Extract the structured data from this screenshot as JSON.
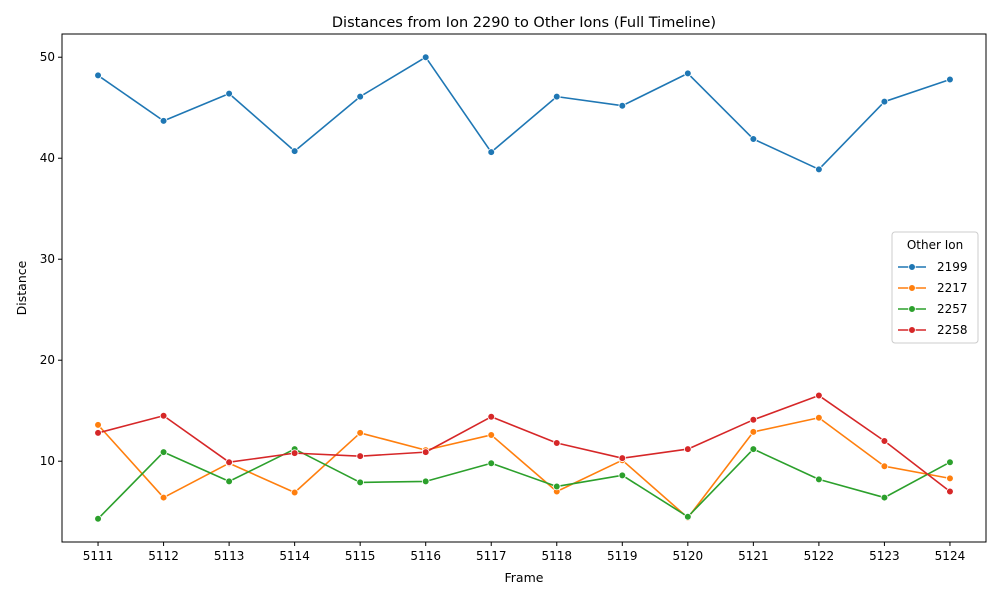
{
  "chart_data": {
    "type": "line",
    "title": "Distances from Ion 2290 to Other Ions (Full Timeline)",
    "xlabel": "Frame",
    "ylabel": "Distance",
    "x": [
      "5111",
      "5112",
      "5113",
      "5114",
      "5115",
      "5116",
      "5117",
      "5118",
      "5119",
      "5120",
      "5121",
      "5122",
      "5123",
      "5124"
    ],
    "ylim": [
      2.0,
      52.3
    ],
    "yticks": [
      10,
      20,
      30,
      40,
      50
    ],
    "grid": false,
    "legend": {
      "title": "Other Ion",
      "placement": "center-right"
    },
    "series": [
      {
        "name": "2199",
        "color": "#1f77b4",
        "values": [
          48.2,
          43.7,
          46.4,
          40.7,
          46.1,
          50.0,
          40.6,
          46.1,
          45.2,
          48.4,
          41.9,
          38.9,
          45.6,
          47.8
        ]
      },
      {
        "name": "2217",
        "color": "#ff7f0e",
        "values": [
          13.6,
          6.4,
          9.8,
          6.9,
          12.8,
          11.1,
          12.6,
          7.0,
          10.1,
          4.4,
          12.9,
          14.3,
          9.5,
          8.3
        ]
      },
      {
        "name": "2257",
        "color": "#2ca02c",
        "values": [
          4.3,
          10.9,
          8.0,
          11.2,
          7.9,
          8.0,
          9.8,
          7.5,
          8.6,
          4.5,
          11.2,
          8.2,
          6.4,
          9.9
        ]
      },
      {
        "name": "2258",
        "color": "#d62728",
        "values": [
          12.8,
          14.5,
          9.9,
          10.8,
          10.5,
          10.9,
          14.4,
          11.8,
          10.3,
          11.2,
          14.1,
          16.5,
          12.0,
          7.0
        ]
      }
    ]
  }
}
